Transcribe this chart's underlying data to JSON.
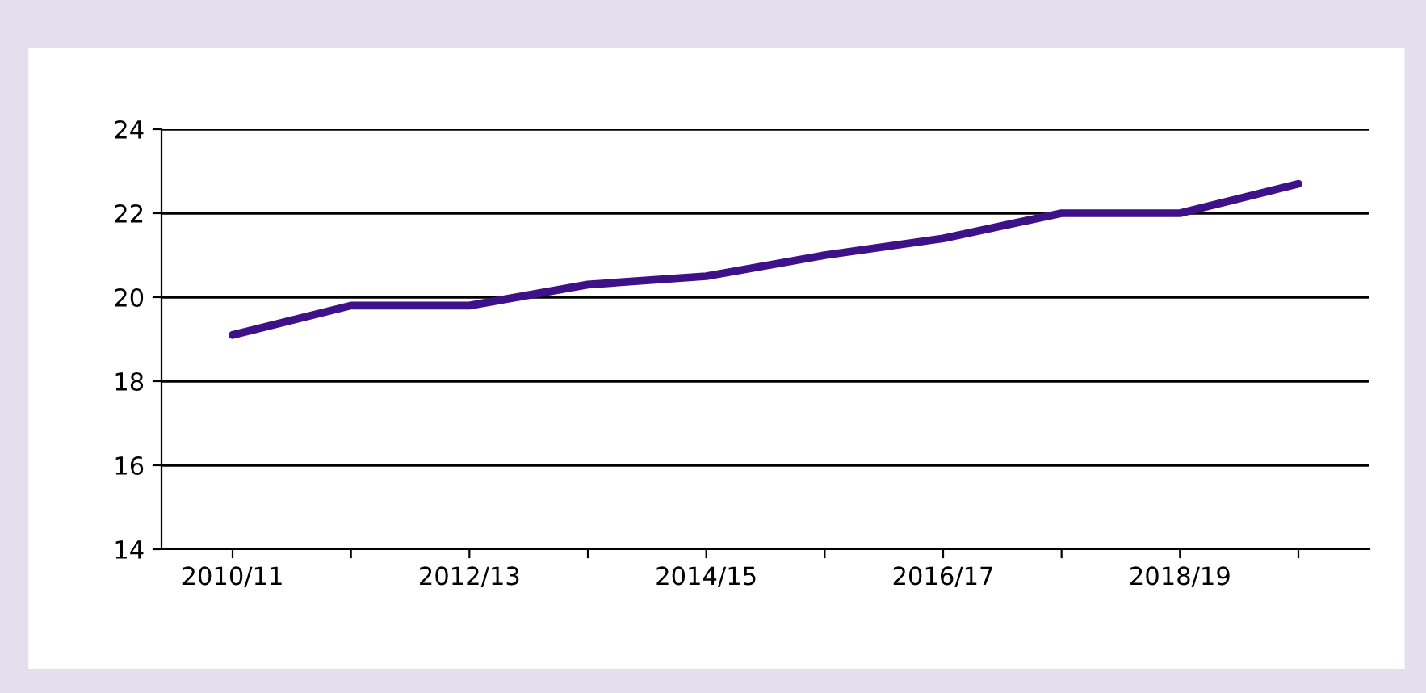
{
  "chart_data": {
    "type": "line",
    "categories": [
      "2010/11",
      null,
      "2012/13",
      null,
      "2014/15",
      null,
      "2016/17",
      null,
      "2018/19",
      null
    ],
    "series": [
      {
        "color": "#3f1189",
        "values": [
          19.1,
          19.8,
          19.8,
          20.3,
          20.5,
          21.0,
          21.4,
          22.0,
          22.0,
          22.7
        ]
      }
    ],
    "ylim": [
      14,
      24
    ],
    "yticks": [
      14,
      16,
      18,
      20,
      22,
      24
    ],
    "grid": "y",
    "marker": "none",
    "line_style": "solid"
  }
}
